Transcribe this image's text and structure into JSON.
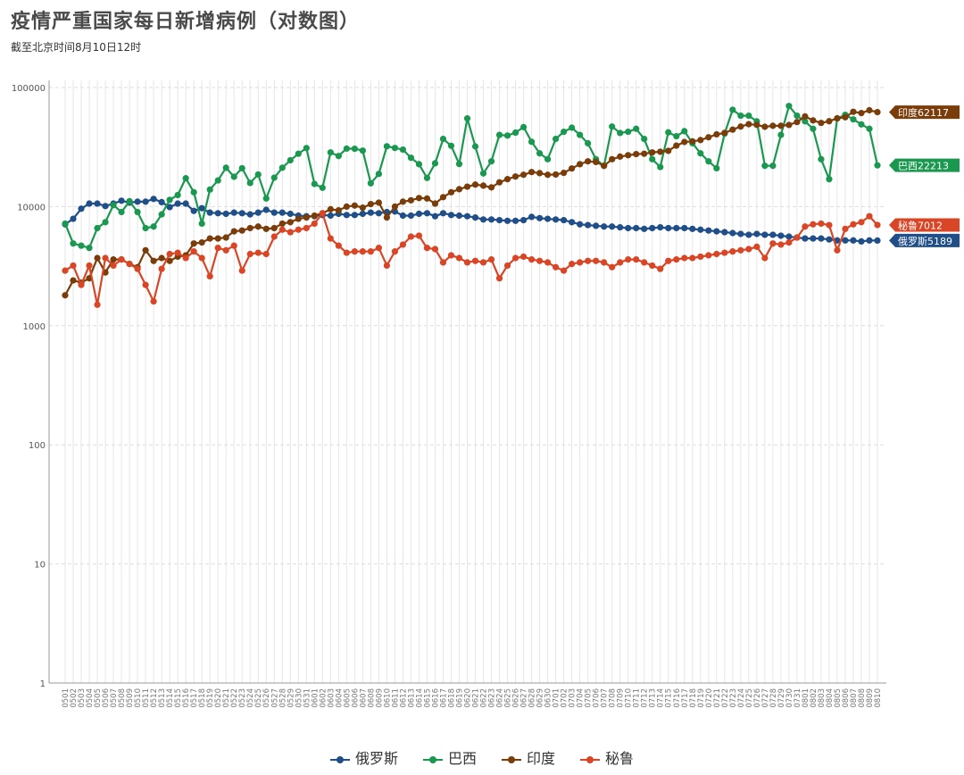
{
  "title": "疫情严重国家每日新增病例（对数图）",
  "subtitle": "截至北京时间8月10日12时",
  "chart_data": {
    "type": "line",
    "yscale": "log",
    "ylim": [
      1,
      100000
    ],
    "yticks": [
      {
        "value": 1,
        "label": "1"
      },
      {
        "value": 10,
        "label": "10"
      },
      {
        "value": 100,
        "label": "100"
      },
      {
        "value": 1000,
        "label": "1000"
      },
      {
        "value": 10000,
        "label": "10000"
      },
      {
        "value": 100000,
        "label": "100000"
      }
    ],
    "grid": true,
    "legend_position": "bottom",
    "x": [
      "0501",
      "0502",
      "0503",
      "0504",
      "0505",
      "0506",
      "0507",
      "0508",
      "0509",
      "0510",
      "0511",
      "0512",
      "0513",
      "0514",
      "0515",
      "0516",
      "0517",
      "0518",
      "0519",
      "0520",
      "0521",
      "0522",
      "0523",
      "0524",
      "0525",
      "0526",
      "0527",
      "0528",
      "0529",
      "0530",
      "0531",
      "0601",
      "0602",
      "0603",
      "0604",
      "0605",
      "0606",
      "0607",
      "0608",
      "0609",
      "0610",
      "0611",
      "0612",
      "0613",
      "0614",
      "0615",
      "0616",
      "0617",
      "0618",
      "0619",
      "0620",
      "0621",
      "0622",
      "0623",
      "0624",
      "0625",
      "0626",
      "0627",
      "0628",
      "0629",
      "0630",
      "0701",
      "0702",
      "0703",
      "0704",
      "0705",
      "0706",
      "0707",
      "0708",
      "0709",
      "0710",
      "0711",
      "0712",
      "0713",
      "0714",
      "0715",
      "0716",
      "0717",
      "0718",
      "0719",
      "0720",
      "0721",
      "0722",
      "0723",
      "0724",
      "0725",
      "0726",
      "0727",
      "0728",
      "0729",
      "0730",
      "0731",
      "0801",
      "0802",
      "0803",
      "0804",
      "0805",
      "0806",
      "0807",
      "0808",
      "0809",
      "0810"
    ],
    "series": [
      {
        "name": "俄罗斯",
        "color": "#1f4e89",
        "end_label": "俄罗斯5189",
        "values": [
          7100,
          7900,
          9600,
          10600,
          10600,
          10100,
          10600,
          11200,
          10800,
          11000,
          11000,
          11600,
          10900,
          9900,
          10600,
          10600,
          9200,
          9700,
          8900,
          8800,
          8700,
          8900,
          8800,
          8600,
          8900,
          9400,
          8900,
          8900,
          8700,
          8400,
          8300,
          8300,
          8500,
          8400,
          8700,
          8500,
          8500,
          8700,
          8900,
          8800,
          9000,
          9100,
          8400,
          8400,
          8700,
          8800,
          8300,
          8800,
          8500,
          8400,
          8300,
          8100,
          7800,
          7800,
          7700,
          7600,
          7600,
          7700,
          8200,
          8000,
          7900,
          7800,
          7700,
          7400,
          7100,
          7000,
          6900,
          6800,
          6800,
          6700,
          6600,
          6600,
          6500,
          6600,
          6700,
          6600,
          6600,
          6600,
          6500,
          6400,
          6300,
          6200,
          6100,
          6000,
          5900,
          5800,
          5900,
          5800,
          5800,
          5700,
          5600,
          5500,
          5400,
          5400,
          5400,
          5300,
          5200,
          5200,
          5200,
          5100,
          5200,
          5189
        ]
      },
      {
        "name": "巴西",
        "color": "#1a9850",
        "end_label": "巴西22213",
        "values": [
          7200,
          4900,
          4700,
          4500,
          6600,
          7400,
          10300,
          9000,
          11100,
          9000,
          6600,
          6800,
          8600,
          11400,
          12500,
          17300,
          13200,
          7200,
          13900,
          16600,
          21200,
          17800,
          21000,
          15800,
          18600,
          11700,
          17500,
          21200,
          24500,
          27800,
          31000,
          15500,
          14400,
          28500,
          26600,
          30700,
          30600,
          29500,
          15700,
          18800,
          32100,
          31100,
          30100,
          25700,
          22700,
          17400,
          23100,
          37000,
          32400,
          22800,
          55000,
          32000,
          19000,
          24000,
          40000,
          39500,
          41800,
          46500,
          35000,
          28000,
          25000,
          37000,
          42500,
          46000,
          40000,
          34000,
          25000,
          22000,
          47000,
          41500,
          42500,
          45000,
          37000,
          25000,
          21500,
          42000,
          39000,
          43000,
          34000,
          28000,
          24000,
          21000,
          41000,
          65000,
          58000,
          58000,
          52000,
          22000,
          22000,
          40000,
          70000,
          58000,
          52000,
          45000,
          25000,
          17000,
          55000,
          59000,
          54000,
          49000,
          45000,
          22213
        ]
      },
      {
        "name": "印度",
        "color": "#7a3d0a",
        "end_label": "印度62117",
        "values": [
          1800,
          2400,
          2300,
          2500,
          3700,
          2800,
          3600,
          3600,
          3300,
          3100,
          4300,
          3500,
          3700,
          3500,
          3800,
          3900,
          4900,
          5000,
          5400,
          5400,
          5500,
          6200,
          6300,
          6600,
          6800,
          6500,
          6600,
          7200,
          7400,
          7900,
          8100,
          8400,
          8800,
          9500,
          9300,
          10000,
          10200,
          9800,
          10500,
          10800,
          8100,
          10000,
          11000,
          11300,
          11800,
          11700,
          10600,
          12000,
          13200,
          14000,
          14700,
          15300,
          15000,
          14500,
          16000,
          17000,
          17900,
          18500,
          19500,
          19100,
          18500,
          18600,
          19200,
          20900,
          22700,
          24000,
          23700,
          22000,
          25000,
          26300,
          27000,
          27600,
          27800,
          28500,
          28900,
          29400,
          32500,
          34900,
          35300,
          36200,
          38200,
          40400,
          41600,
          44300,
          47000,
          49200,
          48600,
          46800,
          47700,
          47700,
          48500,
          51300,
          57200,
          52900,
          50400,
          52100,
          55100,
          56300,
          62500,
          61000,
          64400,
          62117
        ]
      },
      {
        "name": "秘鲁",
        "color": "#d94525",
        "end_label": "秘鲁7012",
        "values": [
          2900,
          3200,
          2200,
          3200,
          1500,
          3700,
          3200,
          3600,
          3300,
          3000,
          2200,
          1600,
          3000,
          4000,
          4100,
          3700,
          4200,
          3700,
          2600,
          4500,
          4300,
          4700,
          2900,
          4000,
          4100,
          4000,
          5600,
          6400,
          6100,
          6400,
          6600,
          7200,
          8800,
          5400,
          4700,
          4100,
          4200,
          4200,
          4200,
          4500,
          3200,
          4200,
          4800,
          5600,
          5700,
          4500,
          4400,
          3400,
          3900,
          3700,
          3400,
          3500,
          3400,
          3600,
          2500,
          3200,
          3700,
          3800,
          3600,
          3500,
          3400,
          3100,
          2900,
          3300,
          3400,
          3500,
          3500,
          3400,
          3100,
          3400,
          3600,
          3600,
          3400,
          3200,
          3000,
          3500,
          3600,
          3700,
          3700,
          3800,
          3900,
          4000,
          4100,
          4200,
          4300,
          4400,
          4600,
          3700,
          4900,
          4800,
          5000,
          5500,
          6800,
          7100,
          7200,
          7000,
          4300,
          6500,
          7100,
          7400,
          8300,
          7012
        ]
      }
    ]
  }
}
